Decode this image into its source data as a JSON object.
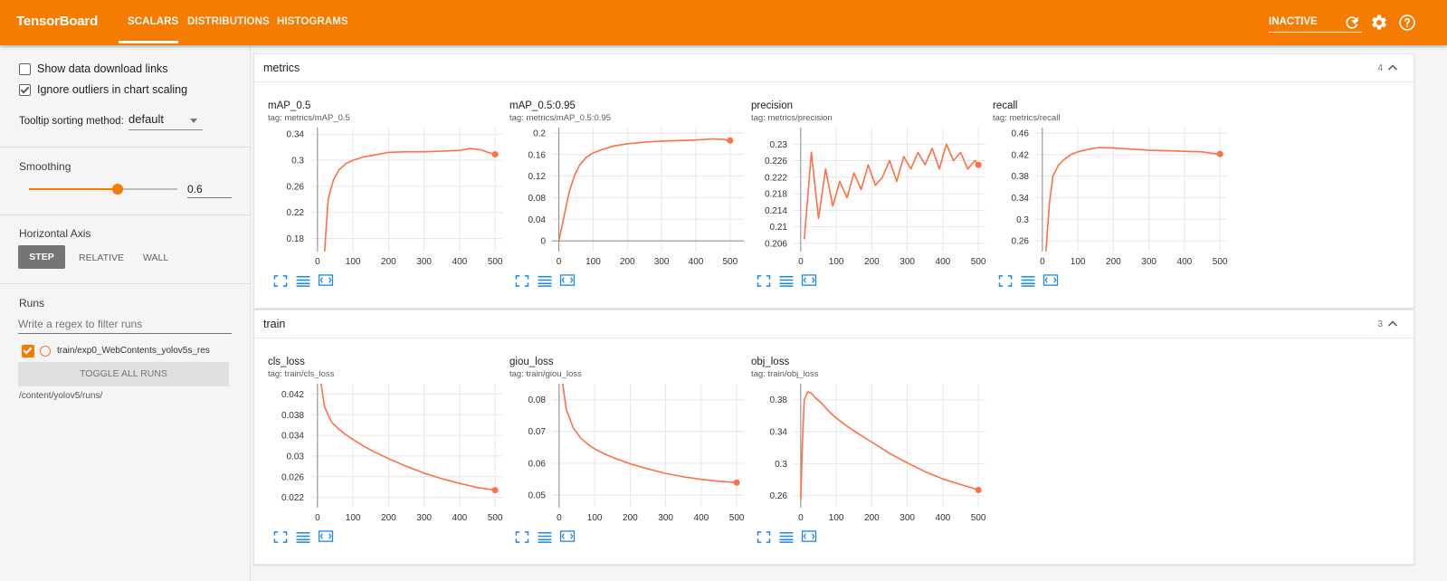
{
  "app": {
    "title": "TensorBoard",
    "tabs": [
      "SCALARS",
      "DISTRIBUTIONS",
      "HISTOGRAMS"
    ],
    "status_select": "INACTIVE",
    "accent_color": "#f57c00",
    "icons": [
      "refresh-icon",
      "gear-icon",
      "help-icon"
    ]
  },
  "sidebar": {
    "show_download_label": "Show data download links",
    "ignore_outliers_label": "Ignore outliers in chart scaling",
    "tooltip_label": "Tooltip sorting method:",
    "tooltip_value": "default",
    "smoothing_heading": "Smoothing",
    "smoothing_value": "0.6",
    "smoothing_fraction": 0.6,
    "horizontal_axis_heading": "Horizontal Axis",
    "axis_buttons": [
      "STEP",
      "RELATIVE",
      "WALL"
    ],
    "runs_heading": "Runs",
    "runs_filter_placeholder": "Write a regex to filter runs",
    "run_name": "train/exp0_WebContents_yolov5s_res",
    "toggle_all_label": "TOGGLE ALL RUNS",
    "log_dir": "/content/yolov5/runs/"
  },
  "groups": [
    {
      "name": "metrics",
      "count": "4",
      "cards": [
        {
          "title": "mAP_0.5",
          "tag": "tag: metrics/mAP_0.5"
        },
        {
          "title": "mAP_0.5:0.95",
          "tag": "tag: metrics/mAP_0.5:0.95"
        },
        {
          "title": "precision",
          "tag": "tag: metrics/precision"
        },
        {
          "title": "recall",
          "tag": "tag: metrics/recall"
        }
      ]
    },
    {
      "name": "train",
      "count": "3",
      "cards": [
        {
          "title": "cls_loss",
          "tag": "tag: train/cls_loss"
        },
        {
          "title": "giou_loss",
          "tag": "tag: train/giou_loss"
        },
        {
          "title": "obj_loss",
          "tag": "tag: train/obj_loss"
        }
      ]
    }
  ],
  "chart_data": [
    {
      "type": "line",
      "title": "mAP_0.5",
      "xlim": [
        -20,
        520
      ],
      "xticks": [
        0,
        100,
        200,
        300,
        400,
        500
      ],
      "ylim": [
        0.16,
        0.35
      ],
      "yticks": [
        0.18,
        0.22,
        0.26,
        0.3,
        0.34
      ],
      "series": [
        {
          "color": "#ff7043",
          "x": [
            20,
            30,
            45,
            60,
            80,
            100,
            130,
            160,
            200,
            250,
            300,
            350,
            400,
            430,
            460,
            480,
            500
          ],
          "y": [
            0.16,
            0.24,
            0.27,
            0.285,
            0.295,
            0.3,
            0.305,
            0.308,
            0.312,
            0.313,
            0.313,
            0.314,
            0.315,
            0.318,
            0.316,
            0.312,
            0.309
          ]
        }
      ]
    },
    {
      "type": "line",
      "title": "mAP_0.5:0.95",
      "xlim": [
        -20,
        540
      ],
      "xticks": [
        0,
        100,
        200,
        300,
        400,
        500
      ],
      "ylim": [
        -0.02,
        0.21
      ],
      "yticks": [
        0,
        0.04,
        0.08,
        0.12,
        0.16,
        0.2
      ],
      "series": [
        {
          "color": "#ff7043",
          "x": [
            0,
            10,
            20,
            30,
            45,
            60,
            80,
            100,
            130,
            160,
            200,
            250,
            300,
            350,
            400,
            450,
            480,
            500
          ],
          "y": [
            0,
            0.03,
            0.06,
            0.09,
            0.12,
            0.14,
            0.155,
            0.163,
            0.17,
            0.176,
            0.18,
            0.183,
            0.185,
            0.186,
            0.187,
            0.189,
            0.188,
            0.186
          ]
        }
      ]
    },
    {
      "type": "line",
      "title": "precision",
      "xlim": [
        -20,
        520
      ],
      "xticks": [
        0,
        100,
        200,
        300,
        400,
        500
      ],
      "ylim": [
        0.204,
        0.234
      ],
      "yticks": [
        0.206,
        0.21,
        0.214,
        0.218,
        0.222,
        0.226,
        0.23
      ],
      "series": [
        {
          "color": "#ff7043",
          "x": [
            10,
            30,
            50,
            70,
            90,
            110,
            130,
            150,
            170,
            190,
            210,
            230,
            250,
            270,
            290,
            310,
            330,
            350,
            370,
            390,
            410,
            430,
            450,
            470,
            490,
            500
          ],
          "y": [
            0.207,
            0.228,
            0.212,
            0.224,
            0.215,
            0.221,
            0.217,
            0.223,
            0.219,
            0.225,
            0.22,
            0.222,
            0.226,
            0.221,
            0.227,
            0.224,
            0.228,
            0.225,
            0.229,
            0.224,
            0.23,
            0.226,
            0.228,
            0.224,
            0.226,
            0.225
          ]
        }
      ]
    },
    {
      "type": "line",
      "title": "recall",
      "xlim": [
        -20,
        520
      ],
      "xticks": [
        0,
        100,
        200,
        300,
        400,
        500
      ],
      "ylim": [
        0.24,
        0.47
      ],
      "yticks": [
        0.26,
        0.3,
        0.34,
        0.38,
        0.42,
        0.46
      ],
      "series": [
        {
          "color": "#ff7043",
          "x": [
            10,
            20,
            30,
            45,
            60,
            80,
            100,
            130,
            160,
            200,
            250,
            300,
            350,
            400,
            450,
            480,
            500
          ],
          "y": [
            0.24,
            0.33,
            0.38,
            0.4,
            0.41,
            0.42,
            0.425,
            0.43,
            0.433,
            0.432,
            0.43,
            0.428,
            0.427,
            0.426,
            0.425,
            0.422,
            0.421
          ]
        }
      ]
    },
    {
      "type": "line",
      "title": "cls_loss",
      "xlim": [
        -20,
        520
      ],
      "xticks": [
        0,
        100,
        200,
        300,
        400,
        500
      ],
      "ylim": [
        0.02,
        0.044
      ],
      "yticks": [
        0.022,
        0.026,
        0.03,
        0.034,
        0.038,
        0.042
      ],
      "series": [
        {
          "color": "#ff7043",
          "x": [
            10,
            20,
            40,
            60,
            80,
            100,
            130,
            160,
            200,
            250,
            300,
            350,
            400,
            450,
            500
          ],
          "y": [
            0.044,
            0.0395,
            0.0365,
            0.0352,
            0.0341,
            0.0332,
            0.0319,
            0.0308,
            0.0295,
            0.028,
            0.0267,
            0.0256,
            0.0247,
            0.0239,
            0.0234
          ]
        }
      ]
    },
    {
      "type": "line",
      "title": "giou_loss",
      "xlim": [
        -20,
        520
      ],
      "xticks": [
        0,
        100,
        200,
        300,
        400,
        500
      ],
      "ylim": [
        0.046,
        0.085
      ],
      "yticks": [
        0.05,
        0.06,
        0.07,
        0.08
      ],
      "series": [
        {
          "color": "#ff7043",
          "x": [
            10,
            20,
            40,
            60,
            80,
            100,
            130,
            160,
            200,
            250,
            300,
            350,
            400,
            450,
            500
          ],
          "y": [
            0.085,
            0.077,
            0.071,
            0.068,
            0.066,
            0.0645,
            0.0628,
            0.0614,
            0.0598,
            0.0582,
            0.0568,
            0.0557,
            0.0549,
            0.0543,
            0.0539
          ]
        }
      ]
    },
    {
      "type": "line",
      "title": "obj_loss",
      "xlim": [
        -20,
        520
      ],
      "xticks": [
        0,
        100,
        200,
        300,
        400,
        500
      ],
      "ylim": [
        0.245,
        0.4
      ],
      "yticks": [
        0.26,
        0.3,
        0.34,
        0.38
      ],
      "series": [
        {
          "color": "#ff7043",
          "x": [
            0,
            5,
            10,
            20,
            30,
            40,
            60,
            80,
            100,
            130,
            160,
            200,
            250,
            300,
            350,
            400,
            450,
            480,
            500
          ],
          "y": [
            0.255,
            0.33,
            0.38,
            0.39,
            0.388,
            0.383,
            0.375,
            0.365,
            0.357,
            0.347,
            0.338,
            0.327,
            0.313,
            0.301,
            0.29,
            0.281,
            0.274,
            0.27,
            0.267
          ]
        }
      ]
    }
  ]
}
